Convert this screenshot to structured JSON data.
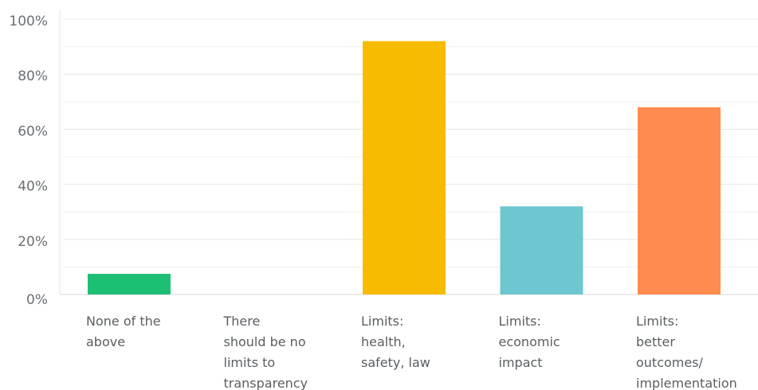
{
  "chart_data": {
    "type": "bar",
    "title": "",
    "xlabel": "",
    "ylabel": "",
    "categories": [
      [
        "None of the",
        "above"
      ],
      [
        "There",
        "should be no",
        "limits to",
        "transparency"
      ],
      [
        "Limits:",
        "health,",
        "safety, law"
      ],
      [
        "Limits:",
        "economic",
        "impact"
      ],
      [
        "Limits:",
        "better",
        "outcomes/",
        "implementation"
      ]
    ],
    "values": [
      7.5,
      0,
      92,
      32,
      68
    ],
    "colors": [
      "#1dbf73",
      "#cccccc",
      "#f7bb01",
      "#6cc7d0",
      "#ff8b4f"
    ],
    "ylim": [
      0,
      100
    ],
    "yticks": [
      0,
      20,
      40,
      60,
      80,
      100
    ],
    "ytick_labels": [
      "0%",
      "20%",
      "40%",
      "60%",
      "80%",
      "100%"
    ],
    "grid": true,
    "legend": "none"
  }
}
